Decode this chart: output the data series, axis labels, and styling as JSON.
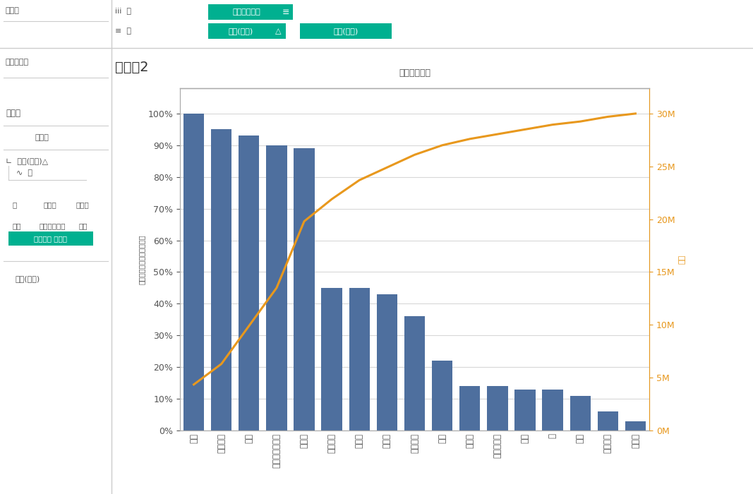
{
  "title": "シート2",
  "col_label": "サブカテゴリ",
  "left_ylabel": "売上の合計の累計合計の％",
  "right_ylabel": "売上",
  "categories": [
    "椅子",
    "コピー機",
    "本棚",
    "アプライアンス",
    "電話機",
    "テーブル",
    "付属品",
    "保管笱",
    "事務機器",
    "収納",
    "文房具",
    "バインダー",
    "画材",
    "紙",
    "封筒",
    "クリップ",
    "ラベル"
  ],
  "bar_values_pct": [
    100,
    95,
    93,
    90,
    89,
    45,
    45,
    43,
    36,
    22,
    14,
    14,
    13,
    13,
    11,
    6,
    3
  ],
  "cumulative_pct": [
    14.5,
    21,
    33,
    45,
    66,
    73,
    79,
    83,
    87,
    90,
    92,
    93.5,
    95,
    96.5,
    97.5,
    99,
    100
  ],
  "bar_color": "#4e6f9e",
  "line_color": "#e8981d",
  "background_color": "#ffffff",
  "plot_bg_color": "#ffffff",
  "right_yticks": [
    0,
    5,
    10,
    15,
    20,
    25,
    30
  ],
  "right_ytick_labels": [
    "0M",
    "5M",
    "10M",
    "15M",
    "20M",
    "25M",
    "30M"
  ],
  "left_yticks": [
    0,
    10,
    20,
    30,
    40,
    50,
    60,
    70,
    80,
    90,
    100
  ],
  "left_ytick_labels": [
    "0%",
    "10%",
    "20%",
    "30%",
    "40%",
    "50%",
    "60%",
    "70%",
    "80%",
    "90%",
    "100%"
  ],
  "grid_color": "#d8d8d8",
  "axis_color": "#aaaaaa",
  "text_color": "#555555",
  "orange_text_color": "#e8981d",
  "teal_color": "#00b090",
  "sidebar_bg": "#f5f5f5",
  "topbar_bg": "#f0f0f0",
  "title_fontsize": 14,
  "label_fontsize": 8.5,
  "tick_fontsize": 9,
  "ui_fontsize": 8,
  "pill_label1": "サブカテゴリ",
  "pill_row1_label": "iii 列",
  "pill_row2_label": "≡ 行",
  "pill2_label": "合計(売上)",
  "pill3_label": "合計(売上)",
  "sidebar_page": "ページ",
  "sidebar_filter": "フィルター",
  "sidebar_mark": "マーク",
  "sidebar_all": "すべて",
  "sidebar_sum": "∟ 合計(売上)△",
  "sidebar_line": "∿ 線",
  "sidebar_major": "メジャー ネーム",
  "sidebar_total": "合計(売上)",
  "sidebar_color": "色",
  "sidebar_size": "サイズ",
  "sidebar_label_item": "ラベル",
  "sidebar_detail": "詳細",
  "sidebar_tooltip": "ツールヒント",
  "sidebar_path": "パス",
  "delta_symbol": "△"
}
